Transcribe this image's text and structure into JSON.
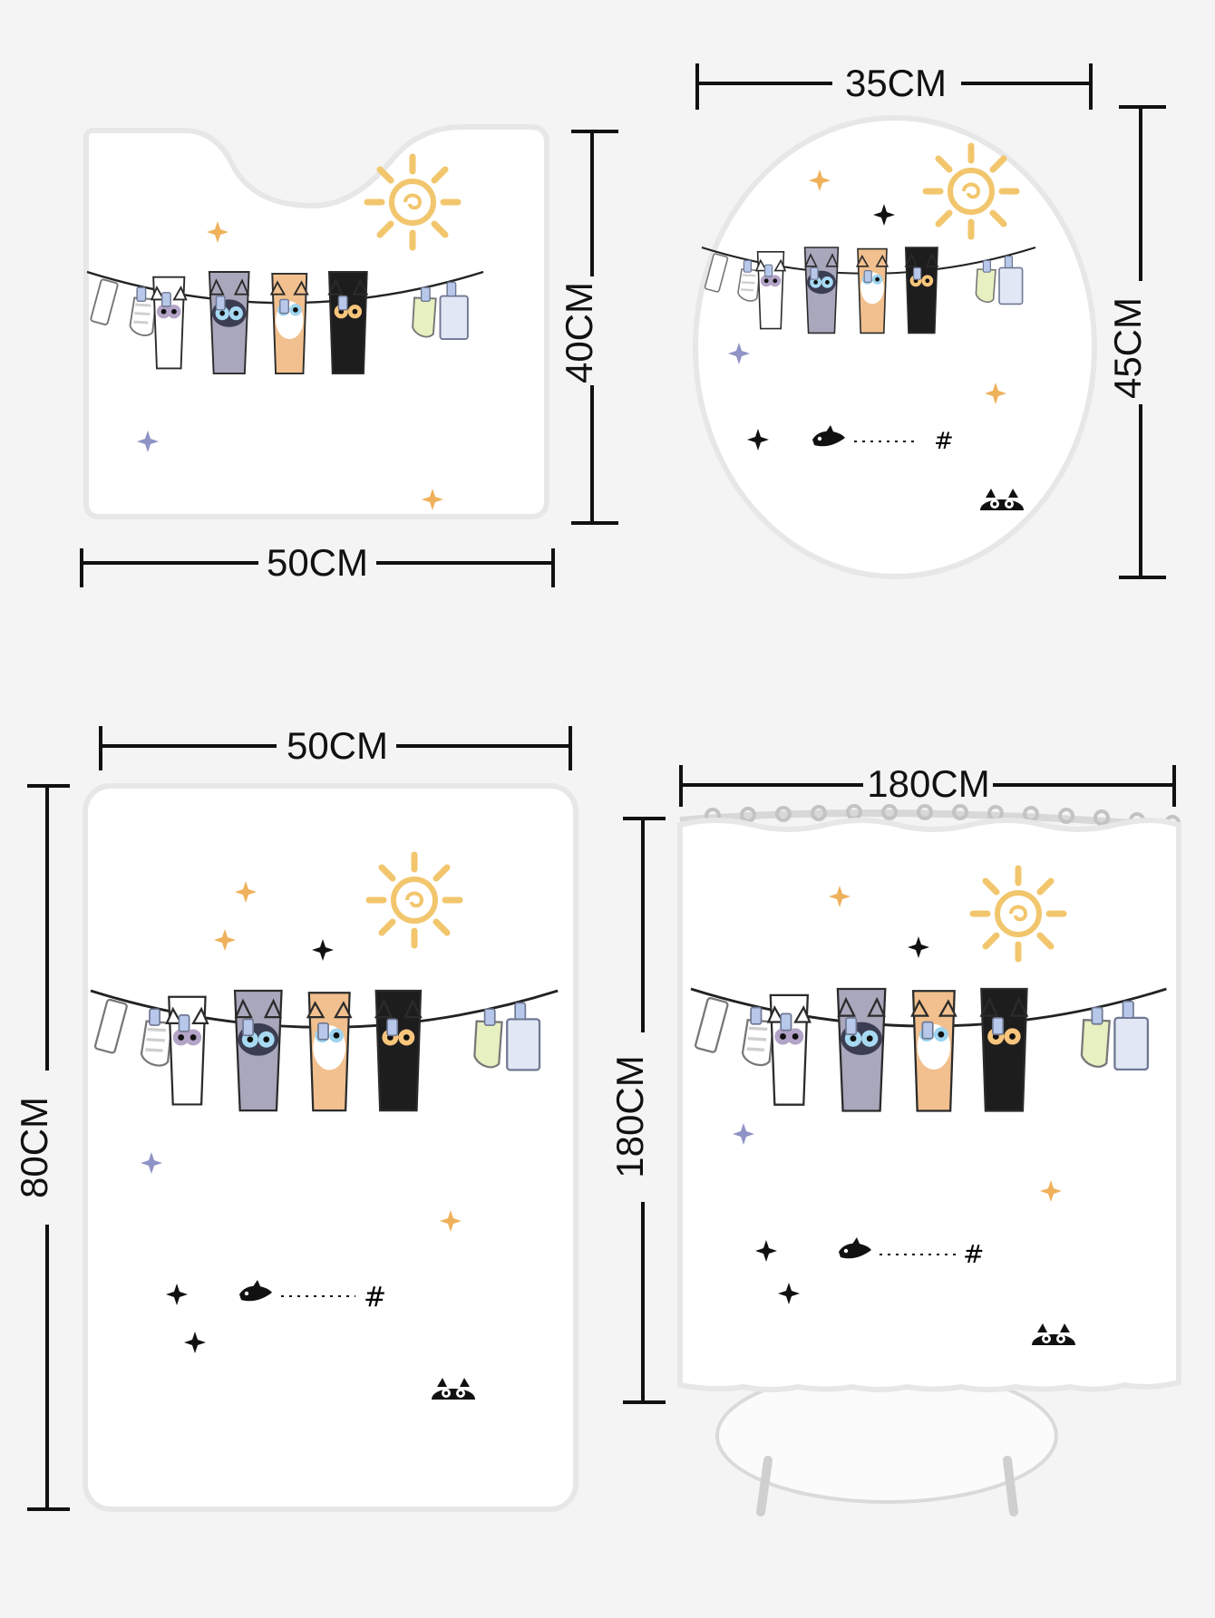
{
  "products": [
    {
      "name": "contour mat",
      "width_label": "50CM",
      "height_label": "40CM"
    },
    {
      "name": "lid cover",
      "width_label": "35CM",
      "height_label": "45CM"
    },
    {
      "name": "bath mat",
      "width_label": "50CM",
      "height_label": "80CM"
    },
    {
      "name": "shower curtain",
      "width_label": "180CM",
      "height_label": "180CM"
    }
  ],
  "colors": {
    "background": "#f4f4f4",
    "product_fill": "#ffffff",
    "product_border": "#e7e7e7",
    "sun": "#f2c66d",
    "star_orange": "#efb15b",
    "star_blue": "#8f93c5",
    "cat_white": "#ffffff",
    "cat_gray": "#a9a7bc",
    "cat_orange": "#f1c08e",
    "cat_black": "#1d1d1d",
    "clip_blue": "#b8c8ea"
  },
  "icons": [
    "sun-icon",
    "sparkle-icon",
    "bird-icon",
    "cat-peek-icon",
    "sock-icon",
    "tag-icon"
  ]
}
